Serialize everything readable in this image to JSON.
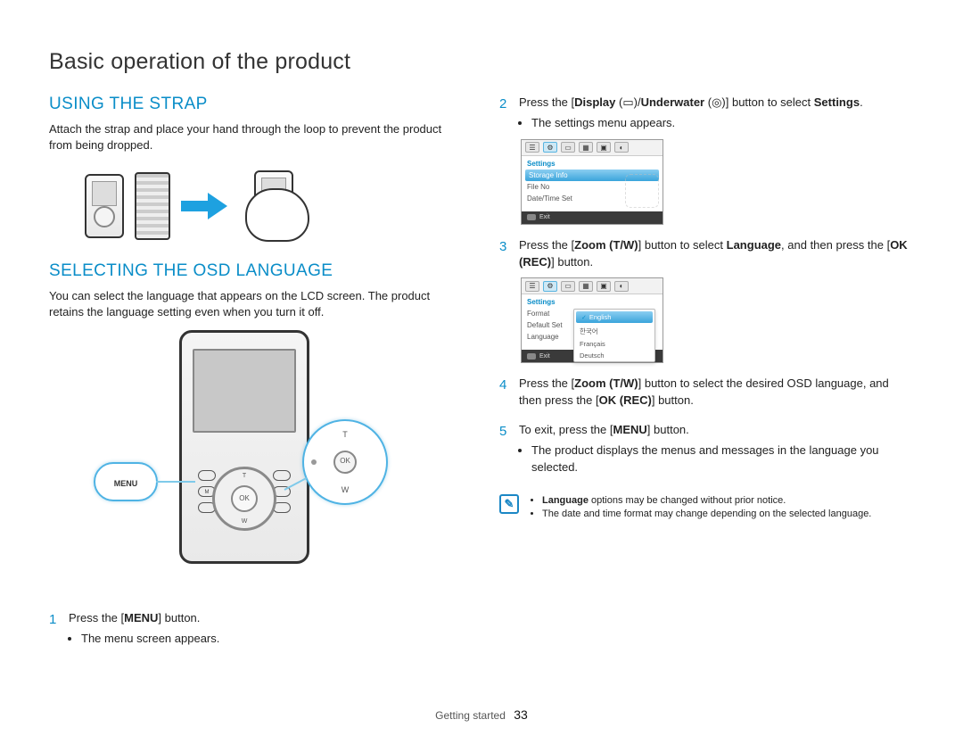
{
  "colors": {
    "accent_blue": "#0a8dc8",
    "arrow_blue": "#1ea1e0",
    "callout_blue": "#4fb3e4",
    "highlight_grad_top": "#8bcef1",
    "highlight_grad_bot": "#3aa4db",
    "text": "#222222",
    "footer_bg": "#3a3a3a"
  },
  "page": {
    "title": "Basic operation of the product",
    "footer_section": "Getting started",
    "footer_page": "33"
  },
  "left": {
    "strap": {
      "heading": "USING THE STRAP",
      "body": "Attach the strap and place your hand through the loop to prevent the product from being dropped."
    },
    "osd": {
      "heading": "SELECTING THE OSD LANGUAGE",
      "body": "You can select the language that appears on the LCD screen. The product retains the language setting even when you turn it off.",
      "callout_menu": "MENU",
      "ring_labels": {
        "t": "T",
        "w": "W",
        "ok": "OK"
      }
    },
    "step1": {
      "num": "1",
      "text_before": "Press the [",
      "menu": "MENU",
      "text_after": "] button.",
      "bullet": "The menu screen appears."
    }
  },
  "right": {
    "step2": {
      "num": "2",
      "t1": "Press the [",
      "display": "Display",
      "t2": " (",
      "t3": ")/",
      "underwater": "Underwater",
      "t4": " (",
      "t5": ")] button to select ",
      "settings": "Settings",
      "t6": ".",
      "bullet": "The settings menu appears."
    },
    "lcd1": {
      "tabs_selected_index": 1,
      "category": "Settings",
      "items": [
        "Storage Info",
        "File No",
        "Date/Time Set"
      ],
      "highlight_index": 0,
      "footer_label": "Exit"
    },
    "step3": {
      "num": "3",
      "t1": "Press the [",
      "zoom": "Zoom",
      "tw": " (T/W)",
      "t2": "] button to select ",
      "language": "Language",
      "t3": ", and then press the [",
      "okrec": "OK (REC)",
      "t4": "] button."
    },
    "lcd2": {
      "category": "Settings",
      "side_items": [
        "Format",
        "Default Set",
        "Language"
      ],
      "lang_options": [
        "English",
        "한국어",
        "Français",
        "Deutsch"
      ],
      "lang_highlight_index": 0,
      "footer_label": "Exit"
    },
    "step4": {
      "num": "4",
      "t1": "Press the [",
      "zoom": "Zoom",
      "tw": " (T/W)",
      "t2": "] button to select the desired OSD language, and then press the [",
      "okrec": "OK (REC)",
      "t3": "] button."
    },
    "step5": {
      "num": "5",
      "t1": "To exit, press the [",
      "menu": "MENU",
      "t2": "] button.",
      "bullet": "The product displays the menus and messages in the language you selected."
    },
    "note": {
      "icon": "✎",
      "lines": [
        {
          "lead_bold": "Language",
          "rest": " options may be changed without prior notice."
        },
        {
          "lead_bold": "",
          "rest": "The date and time format may change depending on the selected language."
        }
      ]
    }
  }
}
